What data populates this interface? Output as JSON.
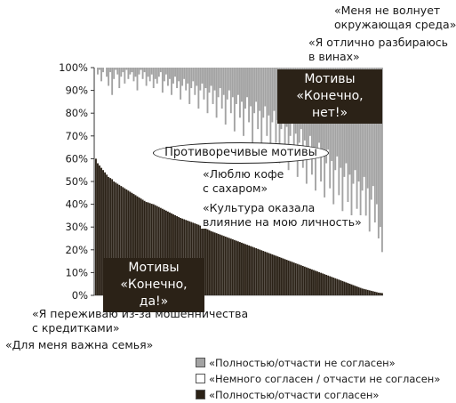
{
  "chart_data": {
    "type": "bar",
    "stacked": true,
    "percent": true,
    "n_bars": 160,
    "ylim": [
      0,
      100
    ],
    "y_ticks": [
      "0%",
      "10%",
      "20%",
      "30%",
      "40%",
      "50%",
      "60%",
      "70%",
      "80%",
      "90%",
      "100%"
    ],
    "series": [
      {
        "name": "«Полностью/отчасти согласен»",
        "color": "#2b2217",
        "role": "agree",
        "values": [
          60,
          58,
          57,
          56,
          55,
          54,
          53,
          52,
          51.5,
          51,
          50,
          49.5,
          49,
          48.5,
          48,
          47.5,
          47,
          46.5,
          46,
          45.5,
          45,
          44.5,
          44,
          43.5,
          43,
          42.5,
          42,
          41.5,
          41,
          40.8,
          40.5,
          40.2,
          40,
          39.6,
          39.2,
          38.8,
          38.4,
          38,
          37.6,
          37.2,
          36.8,
          36.4,
          36,
          35.6,
          35.2,
          34.8,
          34.4,
          34,
          33.7,
          33.4,
          33.1,
          32.8,
          32.5,
          32.2,
          31.9,
          31.6,
          31.3,
          31,
          30.6,
          30.2,
          29.8,
          29.4,
          29,
          28.6,
          28.2,
          27.9,
          27.6,
          27.3,
          27,
          26.7,
          26.4,
          26.1,
          25.8,
          25.5,
          25.2,
          24.9,
          24.6,
          24.3,
          24,
          23.7,
          23.4,
          23.1,
          22.8,
          22.5,
          22.2,
          21.9,
          21.6,
          21.3,
          21,
          20.7,
          20.4,
          20.1,
          19.8,
          19.5,
          19.2,
          18.9,
          18.6,
          18.3,
          18,
          17.7,
          17.4,
          17.1,
          16.8,
          16.5,
          16.2,
          15.9,
          15.6,
          15.3,
          15,
          14.7,
          14.4,
          14.1,
          13.8,
          13.5,
          13.2,
          12.9,
          12.6,
          12.3,
          12,
          11.7,
          11.4,
          11.1,
          10.8,
          10.5,
          10.2,
          9.9,
          9.6,
          9.3,
          9,
          8.7,
          8.4,
          8.1,
          7.8,
          7.5,
          7.2,
          6.9,
          6.6,
          6.3,
          6,
          5.7,
          5.4,
          5.1,
          4.8,
          4.5,
          4.2,
          3.9,
          3.6,
          3.3,
          3,
          2.8,
          2.6,
          2.4,
          2.2,
          2,
          1.8,
          1.6,
          1.4,
          1.2,
          1.1,
          1
        ]
      },
      {
        "name": "«Немного согласен / отчасти не согласен»",
        "color": "#ffffff",
        "role": "neutral",
        "values": []
      },
      {
        "name": "«Полностью/отчасти не согласен»",
        "color": "#a3a3a3",
        "role": "disagree",
        "values": [
          0,
          3,
          1,
          6,
          2,
          0,
          4,
          8,
          2,
          12,
          5,
          1,
          3,
          9,
          4,
          2,
          7,
          1,
          5,
          3,
          2,
          6,
          4,
          10,
          3,
          1,
          5,
          2,
          8,
          4,
          6,
          3,
          9,
          5,
          7,
          4,
          2,
          11,
          6,
          3,
          8,
          5,
          12,
          7,
          4,
          9,
          6,
          14,
          8,
          5,
          10,
          7,
          16,
          9,
          6,
          12,
          8,
          18,
          10,
          7,
          14,
          9,
          20,
          11,
          8,
          16,
          10,
          22,
          13,
          9,
          18,
          12,
          25,
          14,
          10,
          20,
          13,
          28,
          16,
          12,
          22,
          15,
          30,
          18,
          13,
          24,
          17,
          33,
          20,
          15,
          27,
          19,
          36,
          22,
          17,
          30,
          21,
          39,
          24,
          19,
          33,
          23,
          42,
          27,
          21,
          36,
          26,
          45,
          30,
          24,
          40,
          29,
          48,
          33,
          27,
          44,
          32,
          51,
          36,
          30,
          47,
          35,
          54,
          39,
          33,
          50,
          38,
          57,
          42,
          36,
          53,
          41,
          60,
          45,
          39,
          56,
          44,
          63,
          48,
          42,
          59,
          47,
          66,
          51,
          45,
          62,
          50,
          69,
          54,
          48,
          65,
          53,
          72,
          58,
          52,
          68,
          60,
          75,
          70,
          81
        ]
      }
    ]
  },
  "annotations": {
    "top_right": [
      "«Меня не волнует",
      "окружающая среда»"
    ],
    "wine": [
      "«Я отлично разбираюсь",
      "в винах»"
    ],
    "motives_no": [
      "Мотивы",
      "«Конечно, нет!»"
    ],
    "contradictory": "Противоречивые мотивы",
    "coffee": [
      "«Люблю кофе",
      "с сахаром»"
    ],
    "culture": [
      "«Культура оказала",
      "влияние на мою личность»"
    ],
    "motives_yes": [
      "Мотивы",
      "«Конечно, да!»"
    ],
    "fraud": [
      "«Я переживаю из-за мошенничества",
      "с кредитками»"
    ],
    "family": "«Для меня важна семья»"
  },
  "legend": [
    {
      "label": "«Полностью/отчасти не согласен»",
      "color": "#a3a3a3"
    },
    {
      "label": "«Немного согласен / отчасти не согласен»",
      "color": "#ffffff"
    },
    {
      "label": "«Полностью/отчасти согласен»",
      "color": "#2b2217"
    }
  ]
}
